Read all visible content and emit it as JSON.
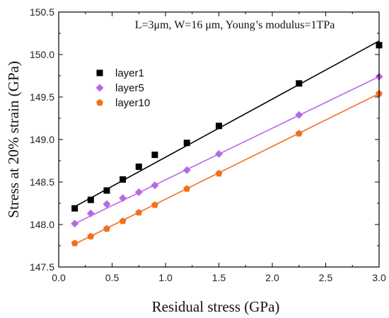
{
  "chart_data": {
    "type": "scatter",
    "title": "",
    "annotation": "L=3μm, W=16 μm, Young’s modulus=1TPa",
    "xlabel": "Residual stress (GPa)",
    "ylabel": "Stress at 20% strain (GPa)",
    "xlim": [
      0.0,
      3.0
    ],
    "ylim": [
      147.5,
      150.5
    ],
    "xticks": [
      "0.0",
      "0.5",
      "1.0",
      "1.5",
      "2.0",
      "2.5",
      "3.0"
    ],
    "yticks": [
      "147.5",
      "148.0",
      "148.5",
      "149.0",
      "149.5",
      "150.0",
      "150.5"
    ],
    "legend_position": "upper-left",
    "grid": false,
    "series": [
      {
        "name": "layer1",
        "marker": "square",
        "color": "#000000",
        "x": [
          0.15,
          0.3,
          0.45,
          0.6,
          0.75,
          0.9,
          1.2,
          1.5,
          2.25,
          3.0
        ],
        "y": [
          148.19,
          148.29,
          148.4,
          148.53,
          148.68,
          148.82,
          148.96,
          149.16,
          149.66,
          150.11
        ],
        "fit": [
          [
            0.15,
            148.21
          ],
          [
            3.0,
            150.16
          ]
        ]
      },
      {
        "name": "layer5",
        "marker": "diamond",
        "color": "#b867e6",
        "x": [
          0.15,
          0.3,
          0.45,
          0.6,
          0.75,
          0.9,
          1.2,
          1.5,
          2.25,
          3.0
        ],
        "y": [
          148.01,
          148.13,
          148.24,
          148.31,
          148.38,
          148.46,
          148.64,
          148.83,
          149.29,
          149.74
        ],
        "fit": [
          [
            0.15,
            148.01
          ],
          [
            3.0,
            149.74
          ]
        ]
      },
      {
        "name": "layer10",
        "marker": "pentagon",
        "color": "#f07020",
        "x": [
          0.15,
          0.3,
          0.45,
          0.6,
          0.75,
          0.9,
          1.2,
          1.5,
          2.25,
          3.0
        ],
        "y": [
          147.78,
          147.86,
          147.95,
          148.04,
          148.14,
          148.23,
          148.42,
          148.6,
          149.07,
          149.54
        ],
        "fit": [
          [
            0.15,
            147.77
          ],
          [
            3.0,
            149.54
          ]
        ]
      }
    ]
  }
}
